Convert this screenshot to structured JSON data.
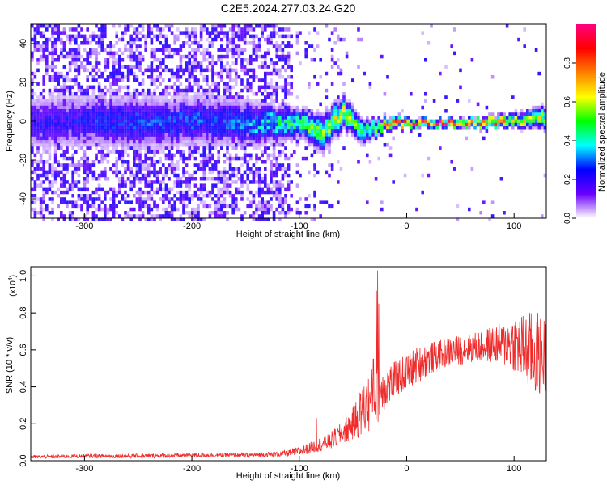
{
  "page_title": "C2E5.2024.277.03.24.G20",
  "chart_data": [
    {
      "id": "spectrogram",
      "type": "heatmap",
      "xlabel": "Height of straight line (km)",
      "ylabel": "Frequency (Hz)",
      "xlim": [
        -350,
        130
      ],
      "ylim": [
        -50,
        50
      ],
      "xticks": [
        -300,
        -200,
        -100,
        0,
        100
      ],
      "yticks": [
        -40,
        -20,
        0,
        20,
        40
      ],
      "xtick_labels": [
        "-300",
        "-200",
        "-100",
        "0",
        "100"
      ],
      "ytick_labels": [
        "-40",
        "-20",
        "0",
        "20",
        "40"
      ],
      "colorbar": {
        "label": "Normalized spectral amplitude",
        "range": [
          0,
          1
        ],
        "ticks": [
          0.0,
          0.2,
          0.4,
          0.6,
          0.8
        ],
        "tick_labels": [
          "0.0",
          "0.2",
          "0.4",
          "0.6",
          "0.8"
        ],
        "colormap": [
          "#ffffff",
          "#6a00ff",
          "#0000ff",
          "#00ffff",
          "#00ff00",
          "#ffff00",
          "#ff8000",
          "#ff0000",
          "#ff0080"
        ]
      },
      "ridge": {
        "description_points_x": [
          -350,
          -300,
          -250,
          -200,
          -150,
          -100,
          -80,
          -60,
          -40,
          -20,
          0,
          50,
          100,
          130
        ],
        "center_freq": [
          0,
          1,
          0,
          1,
          0,
          -1,
          -5,
          5,
          -5,
          0,
          0,
          0,
          1,
          3
        ],
        "half_width": [
          12,
          12,
          12,
          11,
          10,
          6,
          8,
          7,
          5,
          3,
          2,
          2,
          3,
          5
        ],
        "amplitude": [
          0.2,
          0.22,
          0.25,
          0.25,
          0.3,
          0.45,
          0.5,
          0.55,
          0.45,
          0.7,
          0.85,
          0.9,
          0.6,
          0.5
        ]
      }
    },
    {
      "id": "snr",
      "type": "line",
      "xlabel": "Height of straight line (km)",
      "ylabel": "SNR (10 * v/v)",
      "y_multiplier_label": "(x10",
      "y_multiplier_exp": "4",
      "y_multiplier_close": ")",
      "xlim": [
        -350,
        130
      ],
      "ylim": [
        0,
        1.05
      ],
      "xticks": [
        -300,
        -200,
        -100,
        0,
        100
      ],
      "yticks": [
        0.0,
        0.2,
        0.4,
        0.6,
        0.8,
        1.0
      ],
      "xtick_labels": [
        "-300",
        "-200",
        "-100",
        "0",
        "100"
      ],
      "ytick_labels": [
        "0.0",
        "0.2",
        "0.4",
        "0.6",
        "0.8",
        "1.0"
      ],
      "line_color": "#ee2c2c",
      "series": [
        {
          "x": [
            -350,
            -300,
            -250,
            -200,
            -150,
            -120,
            -100,
            -90,
            -80,
            -70,
            -60,
            -50,
            -40,
            -30,
            -20,
            -10,
            0,
            10,
            20,
            30,
            40,
            50,
            60,
            70,
            80,
            90,
            100,
            110,
            120,
            130
          ],
          "values": [
            0.02,
            0.025,
            0.025,
            0.03,
            0.03,
            0.035,
            0.05,
            0.07,
            0.09,
            0.11,
            0.15,
            0.2,
            0.28,
            0.35,
            0.4,
            0.44,
            0.48,
            0.52,
            0.55,
            0.57,
            0.59,
            0.6,
            0.61,
            0.62,
            0.63,
            0.63,
            0.64,
            0.6,
            0.58,
            0.57
          ],
          "noise": [
            0.01,
            0.01,
            0.012,
            0.012,
            0.012,
            0.015,
            0.025,
            0.03,
            0.04,
            0.05,
            0.06,
            0.09,
            0.15,
            0.18,
            0.12,
            0.1,
            0.1,
            0.1,
            0.09,
            0.08,
            0.08,
            0.08,
            0.08,
            0.09,
            0.1,
            0.12,
            0.16,
            0.2,
            0.24,
            0.2
          ],
          "spikes": [
            [
              -27,
              1.03
            ],
            [
              -28,
              0.92
            ],
            [
              -26,
              0.85
            ],
            [
              -31,
              0.55
            ],
            [
              -84,
              0.23
            ]
          ]
        }
      ]
    }
  ]
}
